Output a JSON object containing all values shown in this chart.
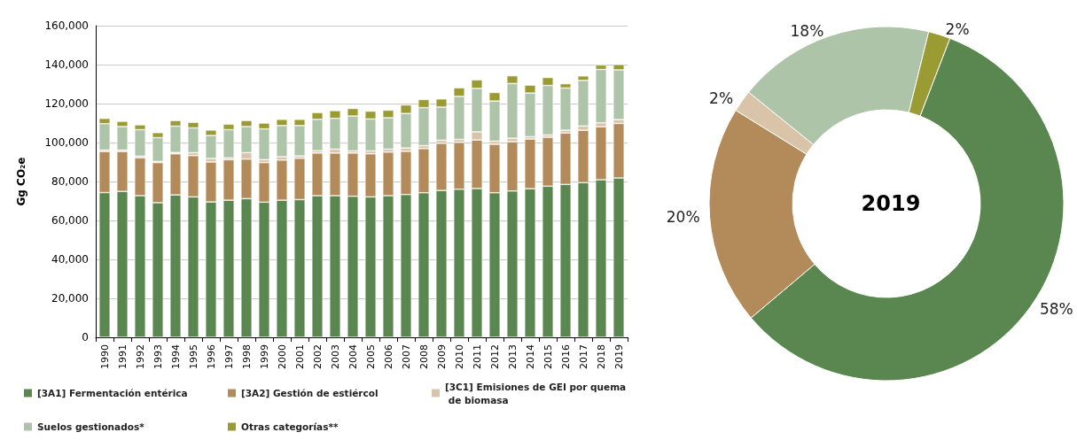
{
  "chart_data": [
    {
      "type": "bar",
      "stacked": true,
      "ylabel": "Gg CO₂e",
      "grid": "y",
      "legend": "bottom",
      "categories": [
        "1990",
        "1991",
        "1992",
        "1993",
        "1994",
        "1995",
        "1996",
        "1997",
        "1998",
        "1999",
        "2000",
        "2001",
        "2002",
        "2003",
        "2004",
        "2005",
        "2006",
        "2007",
        "2008",
        "2009",
        "2010",
        "2011",
        "2012",
        "2013",
        "2014",
        "2015",
        "2016",
        "2017",
        "2018",
        "2019"
      ],
      "ylim": [
        0,
        160000
      ],
      "yticks": [
        {
          "value": 0,
          "label": "0"
        },
        {
          "value": 20000,
          "label": "20,000"
        },
        {
          "value": 40000,
          "label": "40,000"
        },
        {
          "value": 60000,
          "label": "60,000"
        },
        {
          "value": 80000,
          "label": "80,000"
        },
        {
          "value": 100000,
          "label": "100,000"
        },
        {
          "value": 120000,
          "label": "120,000"
        },
        {
          "value": 140000,
          "label": "140,000"
        },
        {
          "value": 160000,
          "label": "160,000"
        }
      ],
      "series": [
        {
          "name": "[3A1] Fermentación entérica",
          "color": "#5a8650",
          "values": [
            74300,
            74900,
            72700,
            69100,
            73100,
            72100,
            69500,
            70400,
            71200,
            69400,
            70400,
            70700,
            72700,
            72700,
            72400,
            72100,
            72700,
            73300,
            74200,
            75400,
            76000,
            76400,
            74200,
            75100,
            76300,
            77600,
            78500,
            79400,
            80900,
            81800
          ]
        },
        {
          "name": "[3A2] Gestión de estiércol",
          "color": "#b38b5a",
          "values": [
            21100,
            20500,
            19500,
            20600,
            21100,
            21200,
            20500,
            20800,
            20300,
            20300,
            20600,
            21200,
            21900,
            21900,
            22200,
            22100,
            22400,
            22200,
            22700,
            24200,
            24100,
            24900,
            24900,
            25300,
            25500,
            25100,
            26400,
            26900,
            27200,
            28000
          ]
        },
        {
          "name": "[3C1] Emisiones de GEI por quema de biomasa",
          "color": "#d9c4aa",
          "values": [
            700,
            700,
            800,
            600,
            700,
            1500,
            1800,
            900,
            3300,
            1500,
            1700,
            1200,
            1200,
            2000,
            1100,
            1500,
            1500,
            1700,
            1500,
            1600,
            1500,
            4200,
            1600,
            1800,
            1200,
            1200,
            1400,
            2200,
            2000,
            2000
          ]
        },
        {
          "name": "Suelos gestionados*",
          "color": "#aec4a8",
          "values": [
            13600,
            12100,
            13600,
            12200,
            13500,
            12700,
            11800,
            14500,
            13400,
            15800,
            16000,
            15600,
            16100,
            15800,
            17900,
            16400,
            16100,
            17700,
            19500,
            17000,
            22100,
            22300,
            20600,
            28100,
            22400,
            25400,
            21700,
            23400,
            27400,
            25500
          ]
        },
        {
          "name": "Otras categorías**",
          "color": "#9a9b33",
          "values": [
            2700,
            2700,
            2500,
            2600,
            2900,
            2900,
            2800,
            2800,
            3100,
            3000,
            3200,
            3200,
            3500,
            4000,
            3900,
            4000,
            3900,
            4400,
            4200,
            4200,
            4400,
            4400,
            4400,
            4000,
            4100,
            4100,
            2200,
            2300,
            2300,
            2800
          ]
        }
      ]
    },
    {
      "type": "donut",
      "title": "2019",
      "categories": [
        null,
        null,
        null,
        null,
        null
      ],
      "values": [
        58,
        20,
        2,
        18,
        2
      ],
      "colors": [
        "#5a8650",
        "#b38b5a",
        "#d9c4aa",
        "#aec4a8",
        "#9a9b33"
      ],
      "value_labels": [
        "58%",
        "20%",
        "2%",
        "18%",
        "2%"
      ]
    }
  ]
}
